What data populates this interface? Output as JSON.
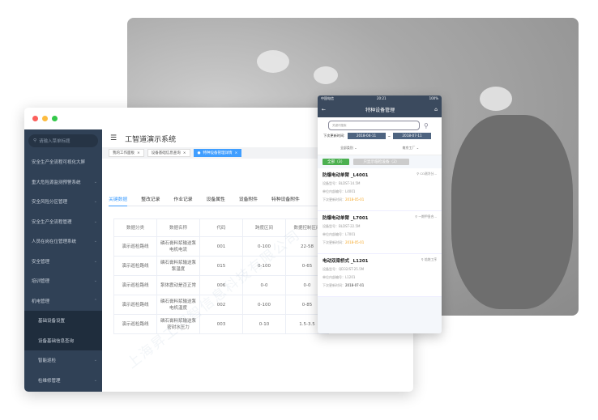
{
  "window": {
    "dots": [
      "#fc605c",
      "#fdbc40",
      "#34c84a"
    ]
  },
  "sidebar": {
    "search_placeholder": "请输入菜单标题",
    "items": [
      {
        "label": "安全生产全流程可视化大屏",
        "chev": ""
      },
      {
        "label": "重大危险源监测预警系统",
        "chev": "⌄"
      },
      {
        "label": "安全风险分区管理",
        "chev": "⌄"
      },
      {
        "label": "安全生产全流程管理",
        "chev": "⌄"
      },
      {
        "label": "人员在岗在位管理系统",
        "chev": "⌄"
      },
      {
        "label": "安全管理",
        "chev": "⌄"
      },
      {
        "label": "培训管理",
        "chev": "⌄"
      },
      {
        "label": "机电管理",
        "chev": "⌃"
      }
    ],
    "subitems": [
      "基础设备设置",
      "设备基础信息查询"
    ],
    "subitems2": [
      {
        "label": "智能巡检",
        "chev": "⌄"
      },
      {
        "label": "检维修管理",
        "chev": "⌄"
      }
    ]
  },
  "header": {
    "title": "工智道演示系统"
  },
  "tags": [
    "我的工作面板",
    "设备基础信息查询",
    "特种设备管理详情"
  ],
  "tabs": [
    "关键数据",
    "整改记录",
    "作业记录",
    "设备属性",
    "设备附件",
    "特种设备附件"
  ],
  "table": {
    "headers": [
      "数据分类",
      "数据名称",
      "代码",
      "跨度区间",
      "数据控制区间"
    ],
    "rows": [
      [
        "演示巡检路线",
        "磷石膏料浆输送泵电机电流",
        "001",
        "0-100",
        "22-58"
      ],
      [
        "演示巡检路线",
        "磷石膏料浆输送泵泵温度",
        "015",
        "0-100",
        "0-65"
      ],
      [
        "演示巡检路线",
        "泵体震动是否正常",
        "006",
        "0-0",
        "0-0"
      ],
      [
        "演示巡检路线",
        "磷石膏料浆输送泵电机温度",
        "002",
        "0-100",
        "0-85"
      ],
      [
        "演示巡检路线",
        "磷石膏料浆输送泵密封水压力",
        "003",
        "0-10",
        "1.5-3.5"
      ]
    ]
  },
  "phone": {
    "status": {
      "carrier": "中国电信",
      "time": "20:21",
      "battery": "100%"
    },
    "title": "特种设备管理",
    "search_placeholder": "关键词搜索",
    "date_label": "下次更新时间:",
    "date_from": "2018-04-11",
    "date_sep": "~",
    "date_to": "2018-07-11",
    "filter1": "全部类别",
    "filter2": "南京工厂",
    "btn_all": "全部（3）",
    "btn_only": "只显示临检设备（2）",
    "items": [
      {
        "name": "防爆电动单臂 _L4001",
        "loc": "CO测冷分...",
        "model": "设备型号：BLDST-14.5M",
        "code": "单位内部编号：L4001",
        "next_label": "下次更新时间：",
        "next": "2018-05-01",
        "warn": true
      },
      {
        "name": "防爆电动单臂 _L7001",
        "loc": "一期甲皇合...",
        "model": "设备型号：BLDST-22.5M",
        "code": "单位内部编号：L7001",
        "next_label": "下次更新时间：",
        "next": "2018-05-01",
        "warn": true
      },
      {
        "name": "电动双梁桥式 _L1201",
        "loc": "焙烧工序",
        "model": "设备型号：QD32/ST-25.5M",
        "code": "单位内部编号：L1201",
        "next_label": "下次更新时间：",
        "next": "2018-07-01",
        "warn": false
      }
    ]
  },
  "watermark": "上海昇工同智信息科技有限公司"
}
